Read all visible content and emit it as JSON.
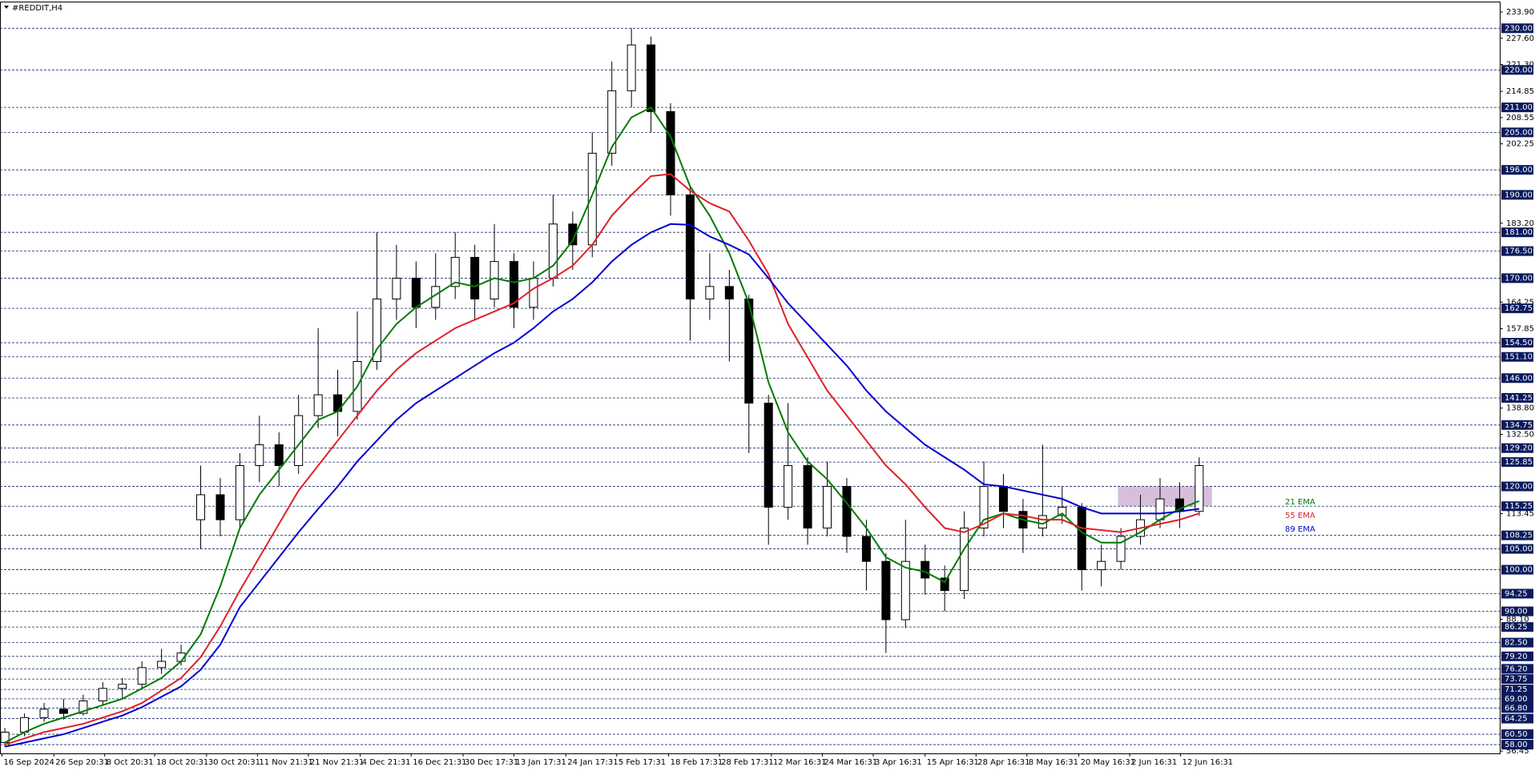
{
  "chart_data": {
    "type": "candlestick",
    "title": "#REDDIT,H4",
    "xlim": [
      -0.25,
      76.35
    ],
    "ylim": [
      55.9,
      236.4
    ],
    "xticks": [
      {
        "value": -0.15,
        "label": "16 Sep 2024"
      },
      {
        "value": 2.5,
        "label": "26 Sep 20:31"
      },
      {
        "value": 5.1,
        "label": "8 Oct 20:31"
      },
      {
        "value": 7.65,
        "label": "18 Oct 20:31"
      },
      {
        "value": 10.3,
        "label": "30 Oct 20:31"
      },
      {
        "value": 12.9,
        "label": "11 Nov 21:31"
      },
      {
        "value": 15.5,
        "label": "21 Nov 21:31"
      },
      {
        "value": 18.15,
        "label": "4 Dec 21:31"
      },
      {
        "value": 20.75,
        "label": "16 Dec 21:31"
      },
      {
        "value": 23.4,
        "label": "30 Dec 17:31"
      },
      {
        "value": 26,
        "label": "13 Jan 17:31"
      },
      {
        "value": 28.65,
        "label": "24 Jan 17:31"
      },
      {
        "value": 31.25,
        "label": "5 Feb 17:31"
      },
      {
        "value": 33.9,
        "label": "18 Feb 17:31"
      },
      {
        "value": 36.5,
        "label": "28 Feb 17:31"
      },
      {
        "value": 39.15,
        "label": "12 Mar 16:31"
      },
      {
        "value": 41.75,
        "label": "24 Mar 16:31"
      },
      {
        "value": 44.35,
        "label": "3 Apr 16:31"
      },
      {
        "value": 47,
        "label": "15 Apr 16:31"
      },
      {
        "value": 49.6,
        "label": "28 Apr 16:31"
      },
      {
        "value": 52.2,
        "label": "8 May 16:31"
      },
      {
        "value": 54.85,
        "label": "20 May 16:31"
      },
      {
        "value": 57.45,
        "label": "2 Jun 16:31"
      },
      {
        "value": 60.05,
        "label": "12 Jun 16:31"
      }
    ],
    "yticks": [
      {
        "value": 233.9,
        "label": "233.90"
      },
      {
        "value": 227.6,
        "label": "227.60"
      },
      {
        "value": 221.3,
        "label": "221.30"
      },
      {
        "value": 214.85,
        "label": "214.85"
      },
      {
        "value": 208.55,
        "label": "208.55"
      },
      {
        "value": 202.25,
        "label": "202.25"
      },
      {
        "value": 183.2,
        "label": "183.20"
      },
      {
        "value": 164.25,
        "label": "164.25"
      },
      {
        "value": 157.85,
        "label": "157.85"
      },
      {
        "value": 138.8,
        "label": "138.80"
      },
      {
        "value": 132.5,
        "label": "132.50"
      },
      {
        "value": 113.45,
        "label": "113.45"
      },
      {
        "value": 88.1,
        "label": "88.10"
      },
      {
        "value": 56.45,
        "label": "56.45"
      }
    ],
    "levels": [
      {
        "value": 230,
        "label": "230.00"
      },
      {
        "value": 220,
        "label": "220.00"
      },
      {
        "value": 211,
        "label": "211.00"
      },
      {
        "value": 205,
        "label": "205.00"
      },
      {
        "value": 196,
        "label": "196.00"
      },
      {
        "value": 190,
        "label": "190.00"
      },
      {
        "value": 181,
        "label": "181.00"
      },
      {
        "value": 176.5,
        "label": "176.50"
      },
      {
        "value": 170,
        "label": "170.00"
      },
      {
        "value": 162.75,
        "label": "162.75"
      },
      {
        "value": 154.5,
        "label": "154.50"
      },
      {
        "value": 151.1,
        "label": "151.10"
      },
      {
        "value": 146,
        "label": "146.00"
      },
      {
        "value": 141.25,
        "label": "141.25"
      },
      {
        "value": 134.75,
        "label": "134.75"
      },
      {
        "value": 129.2,
        "label": "129.20"
      },
      {
        "value": 125.85,
        "label": "125.85"
      },
      {
        "value": 120,
        "label": "120.00"
      },
      {
        "value": 115.25,
        "label": "115.25"
      },
      {
        "value": 108.25,
        "label": "108.25"
      },
      {
        "value": 105,
        "label": "105.00"
      },
      {
        "value": 100,
        "label": "100.00"
      },
      {
        "value": 94.25,
        "label": "94.25"
      },
      {
        "value": 90,
        "label": "90.00"
      },
      {
        "value": 86.25,
        "label": "86.25"
      },
      {
        "value": 82.5,
        "label": "82.50"
      },
      {
        "value": 79.2,
        "label": "79.20"
      },
      {
        "value": 76.2,
        "label": "76.20"
      },
      {
        "value": 73.75,
        "label": "73.75"
      },
      {
        "value": 71.25,
        "label": "71.25"
      },
      {
        "value": 69,
        "label": "69.00"
      },
      {
        "value": 66.8,
        "label": "66.80"
      },
      {
        "value": 64.25,
        "label": "64.25"
      },
      {
        "value": 60.5,
        "label": "60.50"
      },
      {
        "value": 58,
        "label": "58.00"
      }
    ],
    "zone": {
      "x": [
        56.85,
        61.65
      ],
      "y": [
        115.25,
        120
      ],
      "color": "#d7bfdc"
    },
    "ohlc": [
      [
        58.5,
        62,
        57.5,
        61
      ],
      [
        61,
        65.5,
        60,
        64.5
      ],
      [
        64.5,
        68,
        63.5,
        66.5
      ],
      [
        66.5,
        69,
        64,
        65.5
      ],
      [
        65.5,
        70,
        65,
        68.5
      ],
      [
        68.5,
        73,
        67.5,
        71.5
      ],
      [
        71.5,
        74,
        69,
        72.5
      ],
      [
        72.5,
        78,
        71.5,
        76.5
      ],
      [
        76.5,
        81,
        75,
        78
      ],
      [
        78,
        82,
        77,
        80
      ],
      [
        112,
        125,
        105,
        118
      ],
      [
        118,
        122,
        108,
        112
      ],
      [
        112,
        128,
        110,
        125
      ],
      [
        125,
        137,
        121,
        130
      ],
      [
        130,
        133,
        120,
        125
      ],
      [
        125,
        142,
        123,
        137
      ],
      [
        137,
        158,
        134,
        142
      ],
      [
        142,
        148,
        132,
        138
      ],
      [
        138,
        162,
        136,
        150
      ],
      [
        150,
        181,
        148,
        165
      ],
      [
        165,
        178,
        160,
        170
      ],
      [
        170,
        174,
        158,
        163
      ],
      [
        163,
        176,
        160,
        168
      ],
      [
        168,
        181,
        165,
        175
      ],
      [
        175,
        178,
        160,
        165
      ],
      [
        165,
        183,
        163,
        174
      ],
      [
        174,
        176,
        158,
        163
      ],
      [
        163,
        174,
        160,
        170
      ],
      [
        170,
        190,
        168,
        183
      ],
      [
        183,
        186,
        172,
        178
      ],
      [
        178,
        205,
        175,
        200
      ],
      [
        200,
        222,
        197,
        215
      ],
      [
        215,
        230,
        211,
        226
      ],
      [
        226,
        228,
        205,
        210
      ],
      [
        210,
        212,
        185,
        190
      ],
      [
        190,
        192,
        155,
        165
      ],
      [
        165,
        176,
        160,
        168
      ],
      [
        168,
        172,
        150,
        165
      ],
      [
        165,
        166,
        128,
        140
      ],
      [
        140,
        142,
        106,
        115
      ],
      [
        115,
        140,
        112,
        125
      ],
      [
        125,
        127,
        106,
        110
      ],
      [
        110,
        126,
        108,
        120
      ],
      [
        120,
        122,
        104,
        108
      ],
      [
        108,
        112,
        95,
        102
      ],
      [
        102,
        104,
        80,
        88
      ],
      [
        88,
        112,
        86,
        102
      ],
      [
        102,
        106,
        94,
        98
      ],
      [
        98,
        101,
        90,
        95
      ],
      [
        95,
        114,
        93,
        110
      ],
      [
        110,
        126,
        108,
        120
      ],
      [
        120,
        123,
        110,
        114
      ],
      [
        114,
        117,
        104,
        110
      ],
      [
        110,
        130,
        108,
        113
      ],
      [
        113,
        120,
        111,
        115
      ],
      [
        115,
        116,
        95,
        100
      ],
      [
        100,
        106,
        96,
        102
      ],
      [
        102,
        110,
        100,
        108
      ],
      [
        108,
        118,
        106,
        112
      ],
      [
        112,
        122,
        110,
        117
      ],
      [
        117,
        121,
        110,
        114
      ],
      [
        114,
        127,
        113,
        125
      ]
    ],
    "series": [
      {
        "name": "21 EMA",
        "color": "#007a00",
        "values": [
          58.5,
          61,
          63,
          64.5,
          66,
          67.5,
          69,
          71.5,
          74,
          78,
          84.5,
          96,
          110,
          118,
          124,
          130,
          136,
          138,
          144,
          153,
          159,
          163,
          166,
          169,
          168,
          170,
          169,
          170,
          173,
          179,
          190,
          201.5,
          208.6,
          211,
          204,
          192,
          185,
          176,
          164,
          145,
          133,
          126,
          121.7,
          116,
          110,
          103,
          100.5,
          99.5,
          97,
          105,
          112,
          113.5,
          112,
          111,
          113.5,
          109,
          106.5,
          106.5,
          109,
          112,
          114.6,
          116.5
        ]
      },
      {
        "name": "55 EMA",
        "color": "#e0202a",
        "values": [
          58,
          59.5,
          61,
          62,
          63,
          64.5,
          66,
          68,
          71,
          74,
          79,
          86.4,
          95,
          103,
          111,
          119,
          125,
          131,
          137,
          143,
          148,
          152,
          155,
          158,
          160,
          162,
          164,
          167.5,
          170,
          173,
          178,
          185,
          190,
          194.5,
          195,
          191,
          188,
          186,
          179,
          171,
          159,
          151,
          143,
          137,
          131,
          125,
          120.5,
          115,
          110,
          109,
          111,
          113.5,
          113,
          112,
          112,
          110,
          109.5,
          109,
          110,
          111,
          112,
          113.5
        ]
      },
      {
        "name": "89 EMA",
        "color": "#0000d0",
        "values": [
          57.5,
          58.5,
          59.5,
          60.5,
          62,
          63.5,
          65,
          67,
          69.5,
          72,
          76,
          82,
          91,
          97,
          103,
          109,
          114.6,
          120,
          126,
          131,
          136,
          140,
          143,
          146,
          149,
          152,
          154.5,
          158,
          162,
          165,
          169,
          174,
          178,
          181,
          183,
          182.8,
          180,
          178,
          175.7,
          170,
          164,
          159,
          154,
          149,
          143,
          138,
          134,
          130,
          127,
          124,
          120.5,
          120,
          119,
          118,
          117,
          115,
          113.5,
          113.5,
          113.5,
          113.5,
          114,
          114.6
        ]
      }
    ]
  }
}
